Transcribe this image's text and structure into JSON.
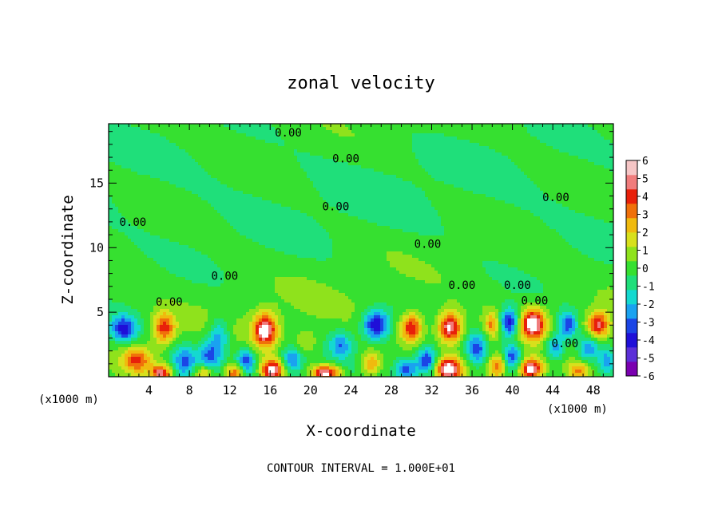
{
  "chart_data": {
    "type": "heatmap",
    "title": "zonal velocity",
    "xlabel": "X-coordinate",
    "ylabel": "Z-coordinate",
    "x_unit_note": "(x1000 m)",
    "footer": "CONTOUR INTERVAL = 1.000E+01",
    "xlim": [
      0,
      50
    ],
    "ylim": [
      0,
      19.6
    ],
    "x_ticks": [
      4,
      8,
      12,
      16,
      20,
      24,
      28,
      32,
      36,
      40,
      44,
      48
    ],
    "x_tick_labels": [
      "4",
      "8",
      "12",
      "16",
      "20",
      "24",
      "28",
      "32",
      "36",
      "40",
      "44",
      "48"
    ],
    "y_ticks": [
      5,
      10,
      15
    ],
    "y_tick_labels": [
      "5",
      "10",
      "15"
    ],
    "colorbar": {
      "min": -6,
      "max": 6,
      "tick_labels": [
        "6",
        "5",
        "4",
        "3",
        "2",
        "1",
        "0",
        "-1",
        "-2",
        "-3",
        "-4",
        "-5",
        "-6"
      ],
      "colors": [
        "#7a00b0",
        "#5c2fd8",
        "#1f0fd8",
        "#1b45e6",
        "#1aa2f0",
        "#14d9d0",
        "#1fdf7a",
        "#36e030",
        "#8fe21c",
        "#d8e01c",
        "#f0ba0e",
        "#f0700a",
        "#e8200a",
        "#f07c7c",
        "#f6c6c6"
      ]
    },
    "contour_labels": [
      {
        "text": "0.00",
        "x": 17.8,
        "y": 18.6
      },
      {
        "text": "0.00",
        "x": 23.5,
        "y": 16.6
      },
      {
        "text": "0.00",
        "x": 44.3,
        "y": 13.6
      },
      {
        "text": "0.00",
        "x": 22.5,
        "y": 12.9
      },
      {
        "text": "0.00",
        "x": 2.4,
        "y": 11.7
      },
      {
        "text": "0.00",
        "x": 31.6,
        "y": 10.0
      },
      {
        "text": "0.00",
        "x": 11.5,
        "y": 7.5
      },
      {
        "text": "0.00",
        "x": 35.0,
        "y": 6.8
      },
      {
        "text": "0.00",
        "x": 40.5,
        "y": 6.8
      },
      {
        "text": "0.00",
        "x": 6.0,
        "y": 5.5
      },
      {
        "text": "0.00",
        "x": 42.2,
        "y": 5.6
      },
      {
        "text": "0.00",
        "x": 45.2,
        "y": 2.3
      }
    ],
    "features": [
      {
        "x": 1.5,
        "z": 3.7,
        "amp": -4.0,
        "sx": 1.3,
        "sz": 1.0
      },
      {
        "x": 5.5,
        "z": 3.8,
        "amp": 4.0,
        "sx": 1.1,
        "sz": 1.2
      },
      {
        "x": 2.8,
        "z": 1.3,
        "amp": 3.5,
        "sx": 1.4,
        "sz": 1.0
      },
      {
        "x": 5.2,
        "z": 0.3,
        "amp": 4.5,
        "sx": 1.0,
        "sz": 0.6
      },
      {
        "x": 7.5,
        "z": 1.2,
        "amp": -3.0,
        "sx": 1.2,
        "sz": 1.2
      },
      {
        "x": 10.0,
        "z": 1.5,
        "amp": -3.0,
        "sx": 1.1,
        "sz": 1.4
      },
      {
        "x": 11.0,
        "z": 3.2,
        "amp": -2.5,
        "sx": 1.0,
        "sz": 1.4
      },
      {
        "x": 9.5,
        "z": 0.3,
        "amp": 3.5,
        "sx": 1.0,
        "sz": 0.7
      },
      {
        "x": 12.5,
        "z": 0.3,
        "amp": 4.0,
        "sx": 1.0,
        "sz": 0.7
      },
      {
        "x": 15.5,
        "z": 3.6,
        "amp": 5.5,
        "sx": 1.2,
        "sz": 1.3
      },
      {
        "x": 16.2,
        "z": 0.5,
        "amp": 5.5,
        "sx": 1.2,
        "sz": 0.8
      },
      {
        "x": 13.6,
        "z": 1.2,
        "amp": -3.5,
        "sx": 1.0,
        "sz": 1.0
      },
      {
        "x": 18.2,
        "z": 1.3,
        "amp": -3.0,
        "sx": 1.0,
        "sz": 1.0
      },
      {
        "x": 19.5,
        "z": 2.6,
        "amp": 1.5,
        "sx": 1.2,
        "sz": 1.0
      },
      {
        "x": 21.5,
        "z": 0.3,
        "amp": 5.5,
        "sx": 1.4,
        "sz": 0.6
      },
      {
        "x": 23.0,
        "z": 2.5,
        "amp": -2.5,
        "sx": 1.0,
        "sz": 1.0
      },
      {
        "x": 26.5,
        "z": 4.0,
        "amp": -4.5,
        "sx": 1.3,
        "sz": 1.1
      },
      {
        "x": 26.0,
        "z": 1.0,
        "amp": 3.0,
        "sx": 1.0,
        "sz": 1.0
      },
      {
        "x": 30.0,
        "z": 3.8,
        "amp": 4.5,
        "sx": 1.1,
        "sz": 1.1
      },
      {
        "x": 29.5,
        "z": 0.6,
        "amp": -3.0,
        "sx": 1.0,
        "sz": 0.8
      },
      {
        "x": 31.5,
        "z": 1.2,
        "amp": -4.0,
        "sx": 1.0,
        "sz": 1.0
      },
      {
        "x": 33.8,
        "z": 3.8,
        "amp": 5.5,
        "sx": 1.2,
        "sz": 1.2
      },
      {
        "x": 33.7,
        "z": 0.6,
        "amp": 5.5,
        "sx": 1.3,
        "sz": 0.9
      },
      {
        "x": 36.5,
        "z": 2.2,
        "amp": -3.0,
        "sx": 1.0,
        "sz": 1.2
      },
      {
        "x": 38.0,
        "z": 4.0,
        "amp": 3.0,
        "sx": 0.8,
        "sz": 1.0
      },
      {
        "x": 38.5,
        "z": 0.8,
        "amp": 3.5,
        "sx": 0.9,
        "sz": 0.9
      },
      {
        "x": 39.7,
        "z": 4.2,
        "amp": -4.5,
        "sx": 1.0,
        "sz": 1.1
      },
      {
        "x": 42.0,
        "z": 4.1,
        "amp": 5.5,
        "sx": 1.3,
        "sz": 1.2
      },
      {
        "x": 41.8,
        "z": 0.6,
        "amp": 5.5,
        "sx": 1.2,
        "sz": 0.8
      },
      {
        "x": 40.0,
        "z": 1.5,
        "amp": -3.5,
        "sx": 0.9,
        "sz": 1.0
      },
      {
        "x": 44.2,
        "z": 2.3,
        "amp": -3.0,
        "sx": 1.0,
        "sz": 1.0
      },
      {
        "x": 45.5,
        "z": 4.0,
        "amp": -3.5,
        "sx": 0.9,
        "sz": 1.0
      },
      {
        "x": 48.5,
        "z": 4.0,
        "amp": 4.5,
        "sx": 1.1,
        "sz": 1.0
      },
      {
        "x": 47.5,
        "z": 2.2,
        "amp": -3.0,
        "sx": 1.0,
        "sz": 1.0
      },
      {
        "x": 46.5,
        "z": 0.4,
        "amp": 3.0,
        "sx": 1.0,
        "sz": 0.7
      },
      {
        "x": 49.3,
        "z": 1.2,
        "amp": -2.5,
        "sx": 0.8,
        "sz": 1.0
      }
    ]
  }
}
